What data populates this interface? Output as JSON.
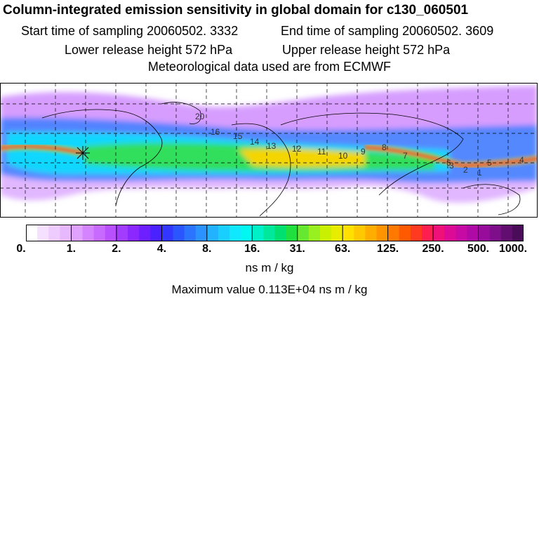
{
  "header": {
    "title": "Column-integrated emission sensitivity in global domain for c130_060501",
    "start_time": "Start time of sampling 20060502.  3332",
    "end_time": "End time of sampling 20060502.  3609",
    "lower_height": "Lower release height  572 hPa",
    "upper_height": "Upper release height  572 hPa",
    "met_data": "Meteorological data used are from ECMWF"
  },
  "map": {
    "trajectory_labels": [
      "2",
      "1",
      "20",
      "16",
      "15",
      "14",
      "13",
      "12",
      "11",
      "10",
      "9",
      "8",
      "7",
      "6",
      "5",
      "4",
      "3",
      "2",
      "1"
    ],
    "colors": {
      "plume_core": "#e8204a",
      "high": "#ffd400",
      "mid": "#39e04a",
      "low": "#00e5ff",
      "lower": "#2f7dff",
      "faint": "#b050ff"
    }
  },
  "colorbar": {
    "tick_labels": [
      "0.",
      "1.",
      "2.",
      "4.",
      "8.",
      "16.",
      "31.",
      "63.",
      "125.",
      "250.",
      "500.",
      "1000."
    ],
    "units": "ns m / kg",
    "colors": [
      "#ffffff",
      "#f6e0ff",
      "#efccff",
      "#e8b8ff",
      "#e0a2ff",
      "#d484ff",
      "#c86aff",
      "#b850ff",
      "#a23cff",
      "#8a28ff",
      "#6e1fff",
      "#4a22ff",
      "#3336ff",
      "#2a55ff",
      "#2a74ff",
      "#2a93ff",
      "#22b2ff",
      "#19cfff",
      "#10e8ff",
      "#00f8f0",
      "#00f0c8",
      "#00e89c",
      "#00e070",
      "#20e040",
      "#66e830",
      "#98f020",
      "#c8f000",
      "#e8ec00",
      "#ffe000",
      "#ffc800",
      "#ffae00",
      "#ff9400",
      "#ff7800",
      "#ff5a00",
      "#ff3a20",
      "#ff1e50",
      "#f0107a",
      "#dc0a94",
      "#c80aa4",
      "#b00aa6",
      "#980c9c",
      "#7e0e8a",
      "#620e70",
      "#4a0c58"
    ]
  },
  "max_value": "Maximum value  0.113E+04 ns m / kg"
}
